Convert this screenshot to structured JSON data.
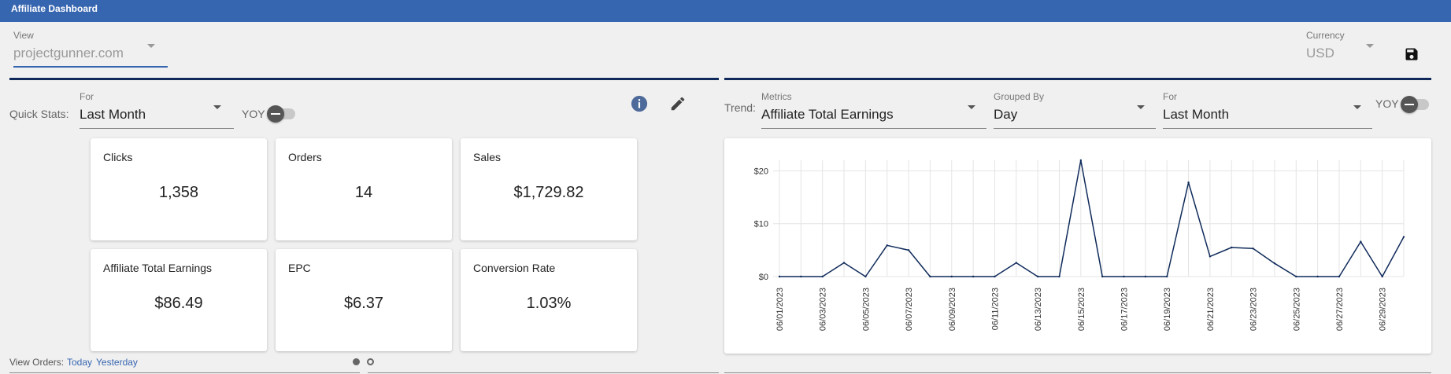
{
  "header": {
    "title": "Affiliate Dashboard"
  },
  "view_select": {
    "label": "View",
    "value": "projectgunner.com"
  },
  "currency_select": {
    "label": "Currency",
    "value": "USD"
  },
  "quick_stats": {
    "label": "Quick Stats:",
    "for_label": "For",
    "for_value": "Last Month",
    "yoy_label": "YOY",
    "cards": [
      {
        "label": "Clicks",
        "value": "1,358"
      },
      {
        "label": "Orders",
        "value": "14"
      },
      {
        "label": "Sales",
        "value": "$1,729.82"
      },
      {
        "label": "Affiliate Total Earnings",
        "value": "$86.49"
      },
      {
        "label": "EPC",
        "value": "$6.37"
      },
      {
        "label": "Conversion Rate",
        "value": "1.03%"
      }
    ]
  },
  "trend": {
    "label": "Trend:",
    "metrics_label": "Metrics",
    "metrics_value": "Affiliate Total Earnings",
    "grouped_label": "Grouped By",
    "grouped_value": "Day",
    "for_label": "For",
    "for_value": "Last Month",
    "yoy_label": "YOY"
  },
  "footer": {
    "view_orders_label": "View Orders:",
    "today_link": "Today",
    "yesterday_link": "Yesterday"
  },
  "colors": {
    "header": "#3766b0",
    "line": "#0f2a5a",
    "link": "#3766b0"
  },
  "chart_data": {
    "type": "line",
    "x": [
      "06/01/2023",
      "06/02/2023",
      "06/03/2023",
      "06/04/2023",
      "06/05/2023",
      "06/06/2023",
      "06/07/2023",
      "06/08/2023",
      "06/09/2023",
      "06/10/2023",
      "06/11/2023",
      "06/12/2023",
      "06/13/2023",
      "06/14/2023",
      "06/15/2023",
      "06/16/2023",
      "06/17/2023",
      "06/18/2023",
      "06/19/2023",
      "06/20/2023",
      "06/21/2023",
      "06/22/2023",
      "06/23/2023",
      "06/24/2023",
      "06/25/2023",
      "06/26/2023",
      "06/27/2023",
      "06/28/2023",
      "06/29/2023",
      "06/30/2023"
    ],
    "xticks": [
      "06/01/2023",
      "06/03/2023",
      "06/05/2023",
      "06/07/2023",
      "06/09/2023",
      "06/11/2023",
      "06/13/2023",
      "06/15/2023",
      "06/17/2023",
      "06/19/2023",
      "06/21/2023",
      "06/23/2023",
      "06/25/2023",
      "06/27/2023",
      "06/29/2023"
    ],
    "values": [
      0,
      0,
      0,
      2.6,
      0,
      5.9,
      5,
      0,
      0,
      0,
      0,
      2.6,
      0,
      0,
      22,
      0,
      0,
      0,
      0,
      17.8,
      3.8,
      5.5,
      5.3,
      2.5,
      0,
      0,
      0,
      6.6,
      0,
      7.5
    ],
    "yticks": [
      {
        "v": 0,
        "label": "$0"
      },
      {
        "v": 10,
        "label": "$10"
      },
      {
        "v": 20,
        "label": "$20"
      }
    ],
    "ylim": [
      0,
      22
    ],
    "grid": true
  }
}
